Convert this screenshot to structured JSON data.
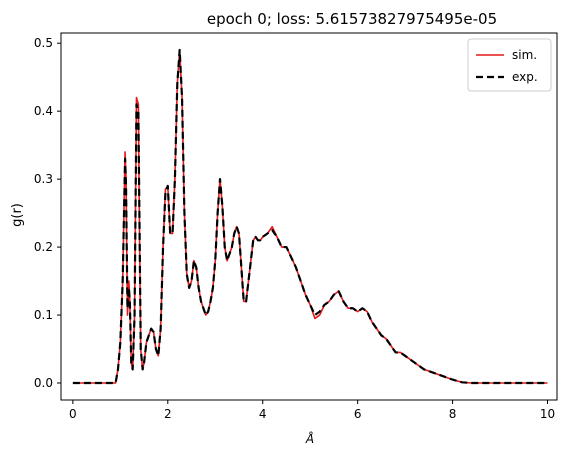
{
  "chart_data": {
    "type": "line",
    "title": "epoch 0; loss: 5.61573827975495e-05",
    "xlabel": "Å",
    "ylabel": "g(r)",
    "xlim": [
      -0.25,
      10.2
    ],
    "ylim": [
      -0.025,
      0.515
    ],
    "xticks": [
      0,
      2,
      4,
      6,
      8,
      10
    ],
    "xtick_labels": [
      "0",
      "2",
      "4",
      "6",
      "8",
      "10"
    ],
    "yticks": [
      0.0,
      0.1,
      0.2,
      0.3,
      0.4,
      0.5
    ],
    "ytick_labels": [
      "0.0",
      "0.1",
      "0.2",
      "0.3",
      "0.4",
      "0.5"
    ],
    "grid": false,
    "legend_position": "top-right",
    "series": [
      {
        "name": "sim.",
        "color": "#e41a1c",
        "style": "solid",
        "x": [
          0,
          0.5,
          0.9,
          0.95,
          1.0,
          1.05,
          1.1,
          1.12,
          1.15,
          1.18,
          1.2,
          1.23,
          1.26,
          1.3,
          1.34,
          1.38,
          1.4,
          1.43,
          1.47,
          1.5,
          1.55,
          1.6,
          1.65,
          1.7,
          1.75,
          1.8,
          1.85,
          1.9,
          1.95,
          2.0,
          2.05,
          2.1,
          2.15,
          2.2,
          2.25,
          2.3,
          2.35,
          2.4,
          2.45,
          2.5,
          2.55,
          2.6,
          2.65,
          2.7,
          2.75,
          2.8,
          2.85,
          2.9,
          2.95,
          3.0,
          3.05,
          3.1,
          3.15,
          3.2,
          3.25,
          3.3,
          3.35,
          3.4,
          3.45,
          3.5,
          3.55,
          3.6,
          3.65,
          3.7,
          3.75,
          3.8,
          3.85,
          3.9,
          3.95,
          4.0,
          4.1,
          4.2,
          4.3,
          4.4,
          4.5,
          4.6,
          4.7,
          4.8,
          4.9,
          5.0,
          5.1,
          5.2,
          5.3,
          5.4,
          5.5,
          5.6,
          5.7,
          5.8,
          5.9,
          6.0,
          6.1,
          6.2,
          6.3,
          6.4,
          6.5,
          6.6,
          6.7,
          6.8,
          6.9,
          7.0,
          7.2,
          7.4,
          7.6,
          7.8,
          8.0,
          8.2,
          8.4,
          8.6,
          8.8,
          9.0,
          9.5,
          10.0
        ],
        "y": [
          0,
          0,
          0,
          0.02,
          0.06,
          0.15,
          0.34,
          0.3,
          0.1,
          0.15,
          0.12,
          0.03,
          0.02,
          0.1,
          0.42,
          0.41,
          0.25,
          0.05,
          0.02,
          0.03,
          0.06,
          0.07,
          0.08,
          0.075,
          0.05,
          0.04,
          0.08,
          0.2,
          0.285,
          0.29,
          0.22,
          0.22,
          0.3,
          0.44,
          0.49,
          0.42,
          0.25,
          0.16,
          0.14,
          0.15,
          0.18,
          0.17,
          0.14,
          0.12,
          0.11,
          0.1,
          0.105,
          0.12,
          0.14,
          0.18,
          0.25,
          0.3,
          0.26,
          0.2,
          0.18,
          0.19,
          0.2,
          0.22,
          0.23,
          0.22,
          0.17,
          0.12,
          0.12,
          0.15,
          0.18,
          0.21,
          0.215,
          0.21,
          0.21,
          0.215,
          0.22,
          0.23,
          0.215,
          0.2,
          0.2,
          0.185,
          0.17,
          0.15,
          0.13,
          0.115,
          0.095,
          0.1,
          0.115,
          0.12,
          0.13,
          0.135,
          0.12,
          0.11,
          0.11,
          0.105,
          0.11,
          0.105,
          0.09,
          0.08,
          0.07,
          0.065,
          0.055,
          0.045,
          0.045,
          0.04,
          0.03,
          0.02,
          0.015,
          0.01,
          0.005,
          0.001,
          0,
          0,
          0,
          0,
          0,
          0
        ]
      },
      {
        "name": "exp.",
        "color": "#000000",
        "style": "dashed",
        "x": [
          0,
          0.5,
          0.9,
          0.95,
          1.0,
          1.05,
          1.1,
          1.12,
          1.15,
          1.18,
          1.2,
          1.23,
          1.26,
          1.3,
          1.34,
          1.38,
          1.4,
          1.43,
          1.47,
          1.5,
          1.55,
          1.6,
          1.65,
          1.7,
          1.75,
          1.8,
          1.85,
          1.9,
          1.95,
          2.0,
          2.05,
          2.1,
          2.15,
          2.2,
          2.25,
          2.3,
          2.35,
          2.4,
          2.45,
          2.5,
          2.55,
          2.6,
          2.65,
          2.7,
          2.75,
          2.8,
          2.85,
          2.9,
          2.95,
          3.0,
          3.05,
          3.1,
          3.15,
          3.2,
          3.25,
          3.3,
          3.35,
          3.4,
          3.45,
          3.5,
          3.55,
          3.6,
          3.65,
          3.7,
          3.75,
          3.8,
          3.85,
          3.9,
          3.95,
          4.0,
          4.1,
          4.2,
          4.3,
          4.4,
          4.5,
          4.6,
          4.7,
          4.8,
          4.9,
          5.0,
          5.1,
          5.2,
          5.3,
          5.4,
          5.5,
          5.6,
          5.7,
          5.8,
          5.9,
          6.0,
          6.1,
          6.2,
          6.3,
          6.4,
          6.5,
          6.6,
          6.7,
          6.8,
          6.9,
          7.0,
          7.2,
          7.4,
          7.6,
          7.8,
          8.0,
          8.2,
          8.4,
          8.6,
          8.8,
          9.0,
          9.5,
          10.0
        ],
        "y": [
          0,
          0,
          0,
          0.02,
          0.06,
          0.15,
          0.33,
          0.29,
          0.11,
          0.14,
          0.12,
          0.03,
          0.02,
          0.1,
          0.41,
          0.4,
          0.26,
          0.05,
          0.02,
          0.03,
          0.06,
          0.07,
          0.08,
          0.075,
          0.05,
          0.04,
          0.08,
          0.2,
          0.28,
          0.29,
          0.22,
          0.22,
          0.3,
          0.44,
          0.49,
          0.42,
          0.25,
          0.16,
          0.14,
          0.15,
          0.18,
          0.17,
          0.14,
          0.12,
          0.11,
          0.1,
          0.105,
          0.12,
          0.14,
          0.18,
          0.25,
          0.3,
          0.26,
          0.2,
          0.18,
          0.19,
          0.2,
          0.22,
          0.23,
          0.22,
          0.17,
          0.12,
          0.12,
          0.15,
          0.18,
          0.21,
          0.215,
          0.21,
          0.21,
          0.215,
          0.22,
          0.225,
          0.215,
          0.2,
          0.2,
          0.185,
          0.17,
          0.15,
          0.13,
          0.115,
          0.1,
          0.105,
          0.115,
          0.12,
          0.13,
          0.135,
          0.12,
          0.11,
          0.11,
          0.105,
          0.11,
          0.105,
          0.09,
          0.08,
          0.07,
          0.065,
          0.055,
          0.045,
          0.045,
          0.04,
          0.03,
          0.02,
          0.015,
          0.01,
          0.005,
          0.001,
          0,
          0,
          0,
          0,
          0,
          0
        ]
      }
    ]
  }
}
